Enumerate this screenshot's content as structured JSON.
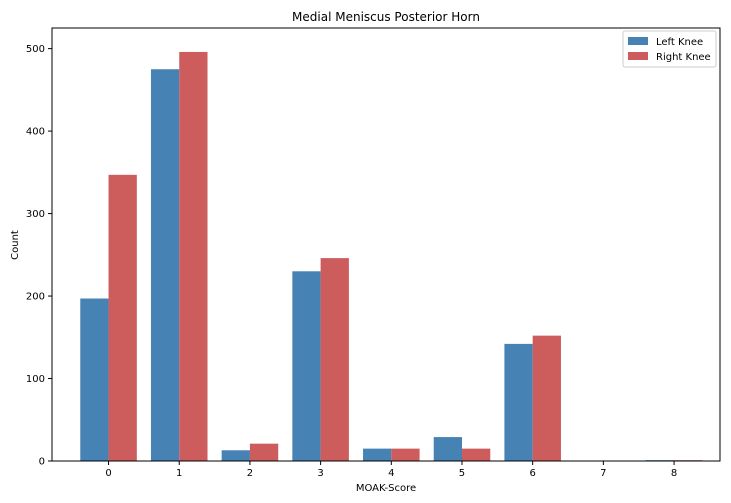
{
  "chart_data": {
    "type": "bar",
    "title": "Medial Meniscus Posterior Horn",
    "xlabel": "MOAK-Score",
    "ylabel": "Count",
    "categories": [
      "0",
      "1",
      "2",
      "3",
      "4",
      "5",
      "6",
      "7",
      "8"
    ],
    "series": [
      {
        "name": "Left Knee",
        "color": "#4682b4",
        "values": [
          197,
          475,
          13,
          230,
          15,
          29,
          142,
          0,
          1
        ]
      },
      {
        "name": "Right Knee",
        "color": "#cd5c5c",
        "values": [
          347,
          496,
          21,
          246,
          15,
          15,
          152,
          0,
          1
        ]
      }
    ],
    "ylim": [
      0,
      525
    ],
    "yticks": [
      0,
      100,
      200,
      300,
      400,
      500
    ],
    "grid": false,
    "legend_position": "top-right"
  }
}
